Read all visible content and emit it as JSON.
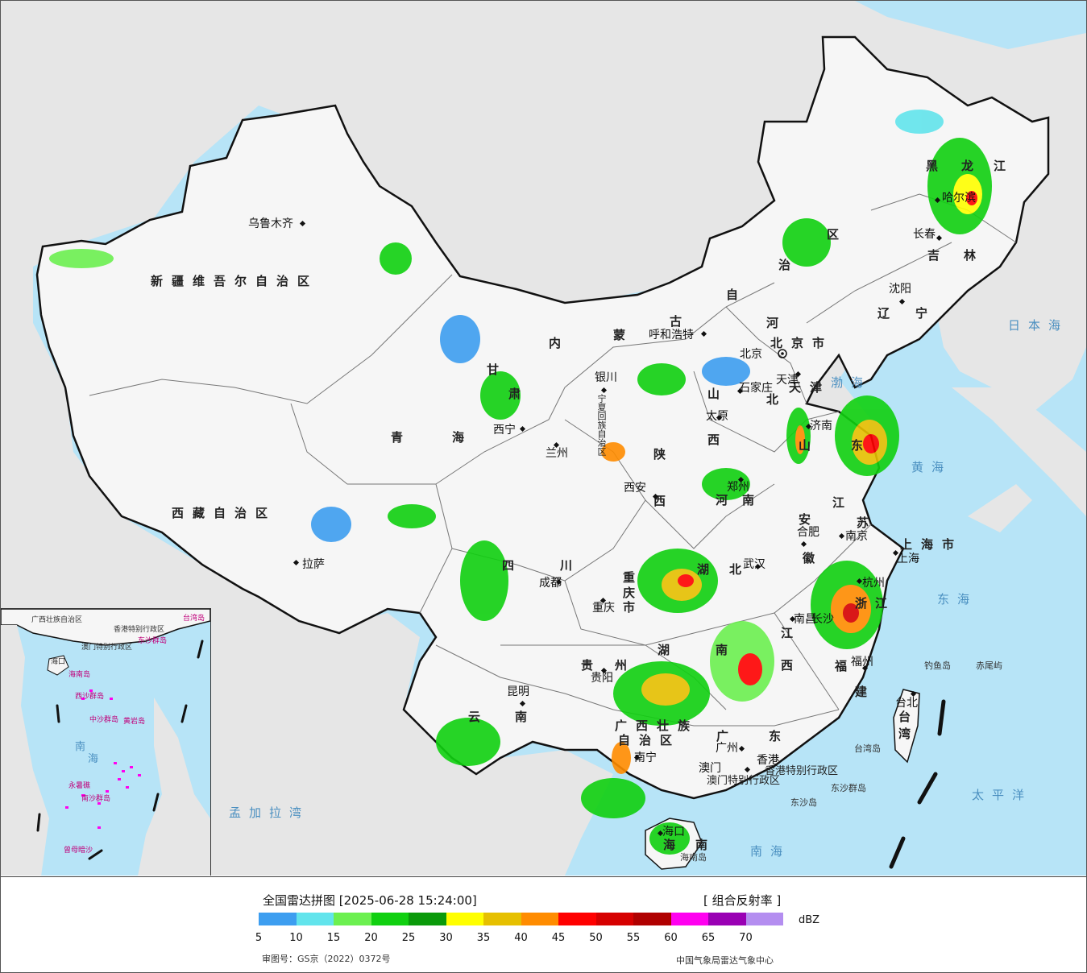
{
  "map": {
    "provinces": [
      {
        "text": "新疆维吾尔自治区"
      },
      {
        "text": "西藏自治区"
      },
      {
        "text": "青"
      },
      {
        "text": "海"
      },
      {
        "text": "甘"
      },
      {
        "text": "肃"
      },
      {
        "text": "内"
      },
      {
        "text": "蒙"
      },
      {
        "text": "古"
      },
      {
        "text": "自"
      },
      {
        "text": "治"
      },
      {
        "text": "区"
      },
      {
        "text": "黑"
      },
      {
        "text": "龙"
      },
      {
        "text": "江"
      },
      {
        "text": "吉"
      },
      {
        "text": "林"
      },
      {
        "text": "辽"
      },
      {
        "text": "宁"
      },
      {
        "text": "河"
      },
      {
        "text": "北"
      },
      {
        "text": "山"
      },
      {
        "text": "西"
      },
      {
        "text": "山"
      },
      {
        "text": "东"
      },
      {
        "text": "河"
      },
      {
        "text": "南"
      },
      {
        "text": "陕"
      },
      {
        "text": "西"
      },
      {
        "text": "宁夏回族自治区"
      },
      {
        "text": "四"
      },
      {
        "text": "川"
      },
      {
        "text": "重"
      },
      {
        "text": "庆"
      },
      {
        "text": "市"
      },
      {
        "text": "湖"
      },
      {
        "text": "北"
      },
      {
        "text": "安"
      },
      {
        "text": "徽"
      },
      {
        "text": "江"
      },
      {
        "text": "苏"
      },
      {
        "text": "上海市"
      },
      {
        "text": "浙"
      },
      {
        "text": "江"
      },
      {
        "text": "江"
      },
      {
        "text": "西"
      },
      {
        "text": "湖"
      },
      {
        "text": "南"
      },
      {
        "text": "贵"
      },
      {
        "text": "州"
      },
      {
        "text": "云"
      },
      {
        "text": "南"
      },
      {
        "text": "广西壮族"
      },
      {
        "text": "自治区"
      },
      {
        "text": "广"
      },
      {
        "text": "东"
      },
      {
        "text": "福"
      },
      {
        "text": "建"
      },
      {
        "text": "台"
      },
      {
        "text": "湾"
      },
      {
        "text": "海"
      },
      {
        "text": "南"
      },
      {
        "text": "天津"
      },
      {
        "text": "北京市"
      },
      {
        "text": "香港特别行政区"
      },
      {
        "text": "澳门特别行政区"
      }
    ],
    "cities": [
      {
        "text": "乌鲁木齐"
      },
      {
        "text": "拉萨"
      },
      {
        "text": "西宁"
      },
      {
        "text": "兰州"
      },
      {
        "text": "银川"
      },
      {
        "text": "呼和浩特"
      },
      {
        "text": "北京"
      },
      {
        "text": "天津"
      },
      {
        "text": "石家庄"
      },
      {
        "text": "太原"
      },
      {
        "text": "济南"
      },
      {
        "text": "郑州"
      },
      {
        "text": "西安"
      },
      {
        "text": "成都"
      },
      {
        "text": "重庆"
      },
      {
        "text": "武汉"
      },
      {
        "text": "合肥"
      },
      {
        "text": "南京"
      },
      {
        "text": "上海"
      },
      {
        "text": "杭州"
      },
      {
        "text": "南昌"
      },
      {
        "text": "长沙"
      },
      {
        "text": "贵阳"
      },
      {
        "text": "昆明"
      },
      {
        "text": "南宁"
      },
      {
        "text": "广州"
      },
      {
        "text": "香港"
      },
      {
        "text": "澳门"
      },
      {
        "text": "福州"
      },
      {
        "text": "台北"
      },
      {
        "text": "海口"
      },
      {
        "text": "沈阳"
      },
      {
        "text": "长春"
      },
      {
        "text": "哈尔滨"
      }
    ],
    "seas": [
      {
        "text": "日本海"
      },
      {
        "text": "渤海"
      },
      {
        "text": "黄海"
      },
      {
        "text": "东海"
      },
      {
        "text": "太平洋"
      },
      {
        "text": "南海"
      },
      {
        "text": "孟加拉湾"
      }
    ],
    "islands": [
      {
        "text": "钓鱼岛"
      },
      {
        "text": "赤尾屿"
      },
      {
        "text": "台湾岛"
      },
      {
        "text": "东沙群岛"
      },
      {
        "text": "东沙岛"
      },
      {
        "text": "海南岛"
      }
    ],
    "inset": {
      "labels": [
        {
          "text": "台湾岛"
        },
        {
          "text": "海口"
        },
        {
          "text": "海南岛"
        },
        {
          "text": "西沙群岛"
        },
        {
          "text": "东沙群岛"
        },
        {
          "text": "中沙群岛"
        },
        {
          "text": "黄岩岛"
        },
        {
          "text": "南沙群岛"
        },
        {
          "text": "永暑礁"
        },
        {
          "text": "曾母暗沙"
        },
        {
          "text": "南"
        },
        {
          "text": "海"
        },
        {
          "text": "广西壮族自治区"
        },
        {
          "text": "香港特别行政区"
        },
        {
          "text": "澳门特别行政区"
        }
      ]
    }
  },
  "legend": {
    "title": "全国雷达拼图 [2025-06-28 15:24:00]",
    "product": "[ 组合反射率 ]",
    "unit": "dBZ",
    "colors": [
      "#3d9ef0",
      "#62e4ec",
      "#6cf050",
      "#10d010",
      "#0a9a0a",
      "#ffff00",
      "#e6c000",
      "#ff8c00",
      "#ff0000",
      "#d60000",
      "#b00000",
      "#ff00f0",
      "#9a00b4",
      "#b48ef0"
    ],
    "ticks": [
      "5",
      "10",
      "15",
      "20",
      "25",
      "30",
      "35",
      "40",
      "45",
      "50",
      "55",
      "60",
      "65",
      "70"
    ],
    "approval": "审图号：GS京（2022）0372号",
    "agency": "中国气象局雷达气象中心"
  }
}
